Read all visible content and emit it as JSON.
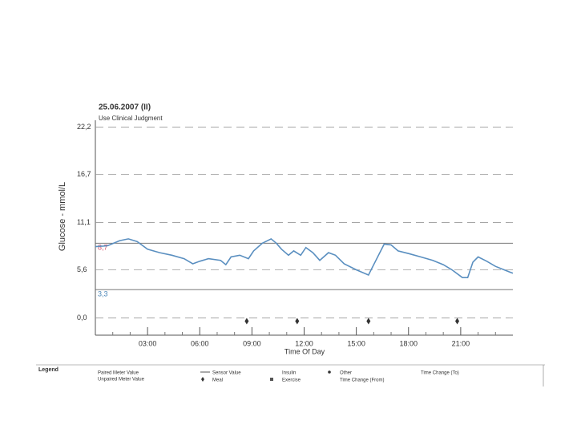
{
  "chart_data": {
    "type": "line",
    "title": "25.06.2007 (II)",
    "subtitle": "Use Clinical Judgment",
    "y_label": "Glucose - mmol/L",
    "x_label": "Time Of Day",
    "xlim": [
      0,
      24
    ],
    "xticks": [
      {
        "value": 3,
        "label": "03:00"
      },
      {
        "value": 6,
        "label": "06:00"
      },
      {
        "value": 9,
        "label": "09:00"
      },
      {
        "value": 12,
        "label": "12:00"
      },
      {
        "value": 15,
        "label": "15:00"
      },
      {
        "value": 18,
        "label": "18:00"
      },
      {
        "value": 21,
        "label": "21:00"
      }
    ],
    "ylim": [
      -2,
      23
    ],
    "yticks": [
      {
        "value": 0,
        "label": "0,0"
      },
      {
        "value": 5.6,
        "label": "5,6"
      },
      {
        "value": 11.1,
        "label": "11,1"
      },
      {
        "value": 16.7,
        "label": "16,7"
      },
      {
        "value": 22.2,
        "label": "22,2"
      }
    ],
    "grid": true,
    "targets": [
      {
        "value": 8.7,
        "label": "8,7",
        "color": "#d0506a"
      },
      {
        "value": 3.3,
        "label": "3,3",
        "color": "#4a86b8"
      }
    ],
    "series": [
      {
        "name": "Sensor Value",
        "color": "#5a8fc0",
        "x": [
          0.0,
          0.7,
          1.4,
          1.9,
          2.4,
          3.0,
          3.7,
          4.4,
          5.1,
          5.6,
          6.0,
          6.5,
          7.2,
          7.5,
          7.8,
          8.3,
          8.8,
          9.1,
          9.6,
          10.1,
          10.4,
          10.7,
          11.1,
          11.4,
          11.8,
          12.1,
          12.5,
          12.9,
          13.4,
          13.8,
          14.3,
          15.0,
          15.7,
          16.1,
          16.6,
          17.0,
          17.4,
          18.0,
          18.7,
          19.4,
          20.0,
          20.5,
          21.1,
          21.4,
          21.7,
          22.0,
          22.5,
          23.0,
          23.5,
          24.0
        ],
        "values": [
          8.3,
          8.4,
          9.0,
          9.2,
          8.9,
          8.0,
          7.6,
          7.3,
          6.9,
          6.3,
          6.6,
          6.9,
          6.7,
          6.2,
          7.1,
          7.3,
          6.9,
          7.8,
          8.7,
          9.2,
          8.7,
          8.0,
          7.3,
          7.8,
          7.3,
          8.2,
          7.6,
          6.7,
          7.6,
          7.3,
          6.3,
          5.6,
          5.0,
          6.6,
          8.6,
          8.5,
          7.8,
          7.5,
          7.1,
          6.7,
          6.2,
          5.6,
          4.7,
          4.7,
          6.5,
          7.1,
          6.6,
          6.0,
          5.6,
          5.2
        ]
      }
    ],
    "meals": [
      8.7,
      11.6,
      15.7,
      20.8
    ],
    "legend": {
      "title": "Legend",
      "items": [
        "Paired Meter Value",
        "Unpaired Meter Value",
        "Sensor Value",
        "Meal",
        "Insulin",
        "Exercise",
        "Other",
        "Time Change (From)",
        "Time Change (To)"
      ]
    }
  }
}
